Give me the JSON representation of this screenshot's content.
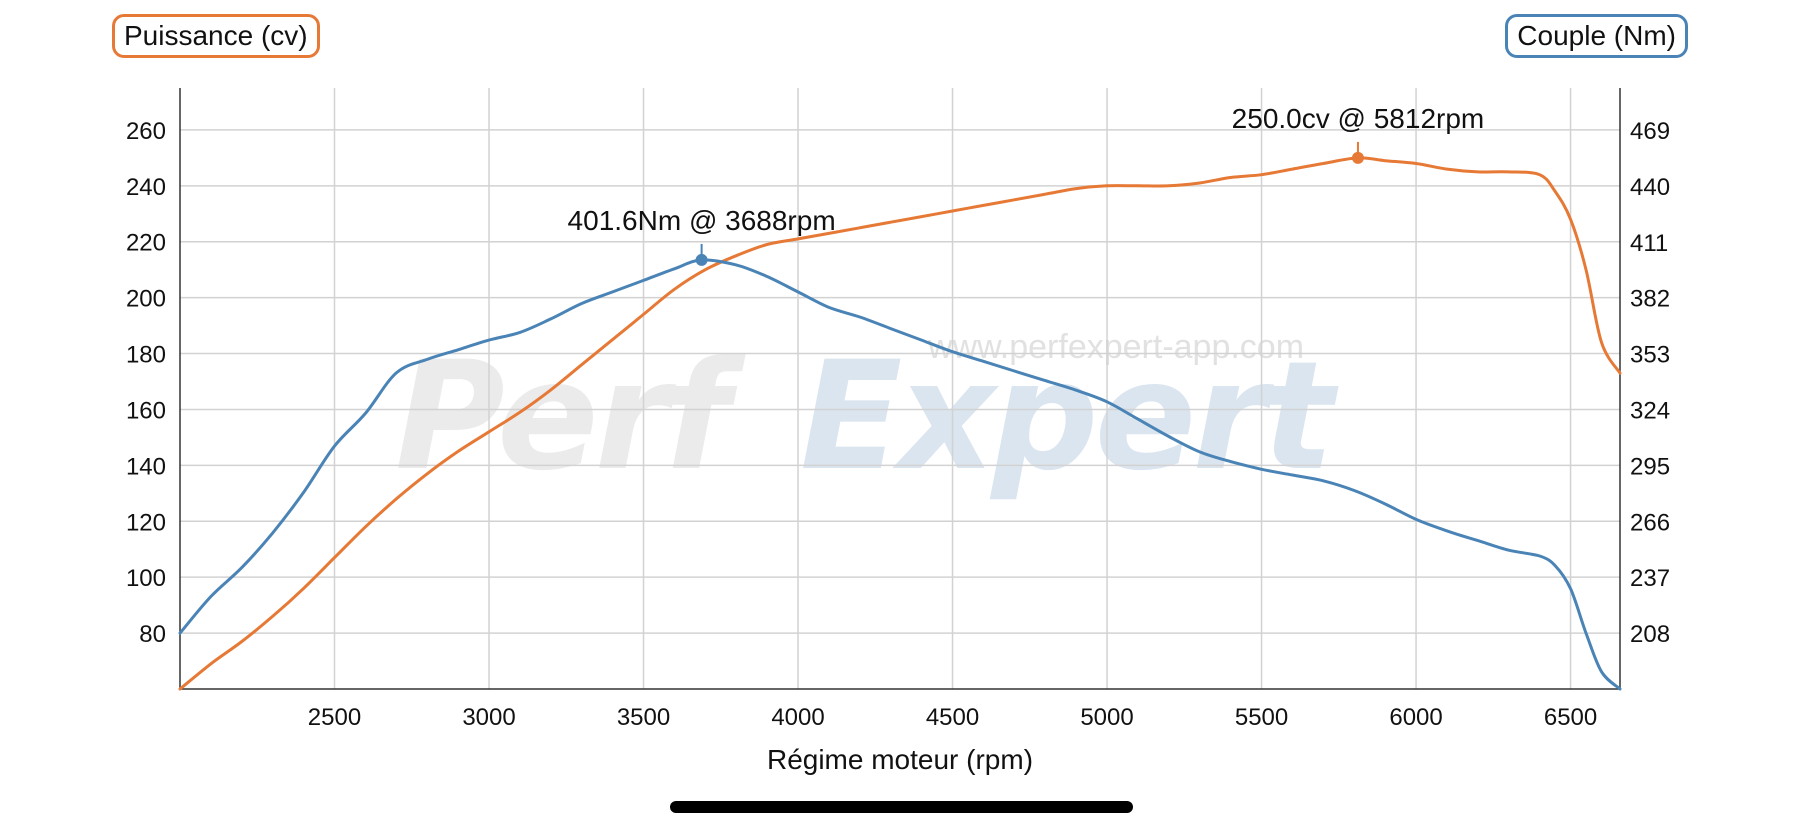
{
  "legend": {
    "power_label": "Puissance (cv)",
    "torque_label": "Couple (Nm)"
  },
  "colors": {
    "power": "#e67935",
    "torque": "#4a84b6",
    "grid": "#d2d2d2",
    "axis": "#333333"
  },
  "watermark": {
    "logo_part1": "Perf",
    "logo_part2": "Expert",
    "url": "www.perfexpert-app.com"
  },
  "chart_data": {
    "type": "line",
    "xlabel": "Régime moteur (rpm)",
    "ylabel_left": "Puissance (cv)",
    "ylabel_right": "Couple (Nm)",
    "xlim": [
      2000,
      6660
    ],
    "x_ticks": [
      2500,
      3000,
      3500,
      4000,
      4500,
      5000,
      5500,
      6000,
      6500
    ],
    "ylim_left": [
      60,
      275
    ],
    "y_ticks_left": [
      80,
      100,
      120,
      140,
      160,
      180,
      200,
      220,
      240,
      260
    ],
    "ylim_right": [
      179,
      490.8
    ],
    "y_ticks_right": [
      208,
      237,
      266,
      295,
      324,
      353,
      382,
      411,
      440,
      469
    ],
    "grid": true,
    "series": [
      {
        "name": "Puissance (cv)",
        "axis": "left",
        "x": [
          2000,
          2100,
          2200,
          2300,
          2400,
          2500,
          2600,
          2700,
          2800,
          2900,
          3000,
          3100,
          3200,
          3300,
          3400,
          3500,
          3600,
          3700,
          3800,
          3900,
          4000,
          4100,
          4200,
          4300,
          4400,
          4500,
          4600,
          4700,
          4800,
          4900,
          5000,
          5100,
          5200,
          5300,
          5400,
          5500,
          5600,
          5700,
          5812,
          5900,
          6000,
          6100,
          6200,
          6300,
          6400,
          6450,
          6500,
          6550,
          6600,
          6660
        ],
        "values": [
          60,
          69,
          77,
          86,
          96,
          107,
          118,
          128,
          137,
          145,
          152,
          159,
          167,
          176,
          185,
          194,
          203,
          210,
          215,
          219,
          221,
          223,
          225,
          227,
          229,
          231,
          233,
          235,
          237,
          239,
          240,
          240,
          240,
          241,
          243,
          244,
          246,
          248,
          250,
          249,
          248,
          246,
          245,
          245,
          244,
          238,
          228,
          210,
          184,
          173
        ]
      },
      {
        "name": "Couple (Nm)",
        "axis": "right",
        "x": [
          2000,
          2100,
          2200,
          2300,
          2400,
          2500,
          2600,
          2700,
          2800,
          2900,
          3000,
          3100,
          3200,
          3300,
          3400,
          3500,
          3600,
          3688,
          3800,
          3900,
          4000,
          4100,
          4200,
          4300,
          4400,
          4500,
          4600,
          4700,
          4800,
          4900,
          5000,
          5100,
          5200,
          5300,
          5400,
          5500,
          5600,
          5700,
          5800,
          5900,
          6000,
          6100,
          6200,
          6300,
          6400,
          6450,
          6500,
          6550,
          6600,
          6660
        ],
        "values": [
          208,
          227,
          242,
          260,
          281,
          305,
          322,
          343,
          350,
          355,
          360,
          364,
          371,
          379,
          385,
          391,
          397,
          401.6,
          399,
          393,
          385,
          377,
          372,
          366,
          360,
          354,
          349,
          344,
          339,
          334,
          328,
          319,
          310,
          302,
          297,
          293,
          290,
          287,
          282,
          275,
          267,
          261,
          256,
          251,
          248,
          243,
          231,
          208,
          188,
          179
        ]
      }
    ],
    "annotations": [
      {
        "text": "401.6Nm @ 3688rpm",
        "x": 3688,
        "y": 401.6,
        "axis": "right",
        "series": "Couple (Nm)"
      },
      {
        "text": "250.0cv @ 5812rpm",
        "x": 5812,
        "y": 250.0,
        "axis": "left",
        "series": "Puissance (cv)"
      }
    ]
  }
}
